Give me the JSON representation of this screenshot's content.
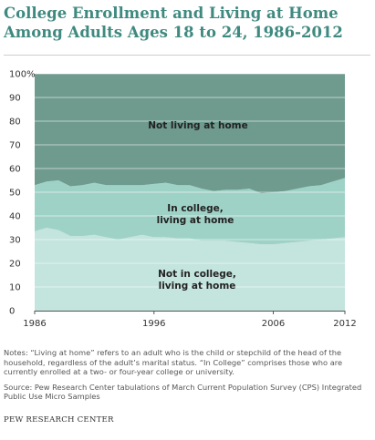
{
  "title": "College Enrollment and Living at Home Among Adults Ages 18 to 24, 1986-2012",
  "chart_data": {
    "type": "area",
    "stacked": true,
    "x": [
      1986,
      1987,
      1988,
      1989,
      1990,
      1991,
      1992,
      1993,
      1994,
      1995,
      1996,
      1997,
      1998,
      1999,
      2000,
      2001,
      2002,
      2003,
      2004,
      2005,
      2006,
      2007,
      2008,
      2009,
      2010,
      2011,
      2012
    ],
    "series": [
      {
        "name": "Not in college, living at home",
        "color": "#c4e4de",
        "values": [
          33.5,
          35,
          34,
          31.5,
          31.5,
          32,
          31,
          30,
          31,
          32,
          31,
          31,
          30.5,
          30.5,
          29.5,
          29.5,
          29.5,
          29,
          28.5,
          28,
          28,
          28.5,
          29,
          29.5,
          30,
          30.5,
          31
        ]
      },
      {
        "name": "In college, living at home",
        "color": "#9fd2c6",
        "values": [
          19.5,
          19.5,
          21,
          21,
          21.5,
          22,
          22,
          23,
          22,
          21,
          22.5,
          23,
          22.5,
          22.5,
          22,
          21,
          21.5,
          22,
          23,
          21.5,
          22,
          22,
          22.5,
          23,
          23,
          24,
          25
        ]
      },
      {
        "name": "Not living at home",
        "color": "#6e9b8e",
        "values": [
          47,
          45.5,
          45,
          47.5,
          47,
          46,
          47,
          47,
          47,
          47,
          46.5,
          46,
          47,
          47,
          48.5,
          49.5,
          49,
          49,
          48.5,
          50.5,
          50,
          49.5,
          48.5,
          47.5,
          47,
          45.5,
          44
        ]
      }
    ],
    "labels": {
      "not_home": "Not living at home",
      "college_line1": "In college,",
      "college_line2": "living at home",
      "notcollege_line1": "Not in college,",
      "notcollege_line2": "living at home"
    },
    "y_ticks": [
      "0",
      "10",
      "20",
      "30",
      "40",
      "50",
      "60",
      "70",
      "80",
      "90",
      "100%"
    ],
    "x_tick_labels": [
      "1986",
      "1996",
      "2006",
      "2012"
    ],
    "x_tick_values": [
      1986,
      1996,
      2006,
      2012
    ],
    "ylim": [
      0,
      100
    ],
    "xlim": [
      1986,
      2012
    ],
    "grid": true,
    "gridline_color": "#ffffff"
  },
  "notes": "Notes: “Living at home” refers to an adult who is the child or stepchild of the head of the household, regardless of the adult’s marital status. “In College” comprises those who are currently enrolled at a two- or four-year college or university.",
  "source": "Source: Pew Research Center tabulations of March Current Population Survey (CPS) Integrated Public Use Micro Samples",
  "organization": "PEW RESEARCH CENTER"
}
